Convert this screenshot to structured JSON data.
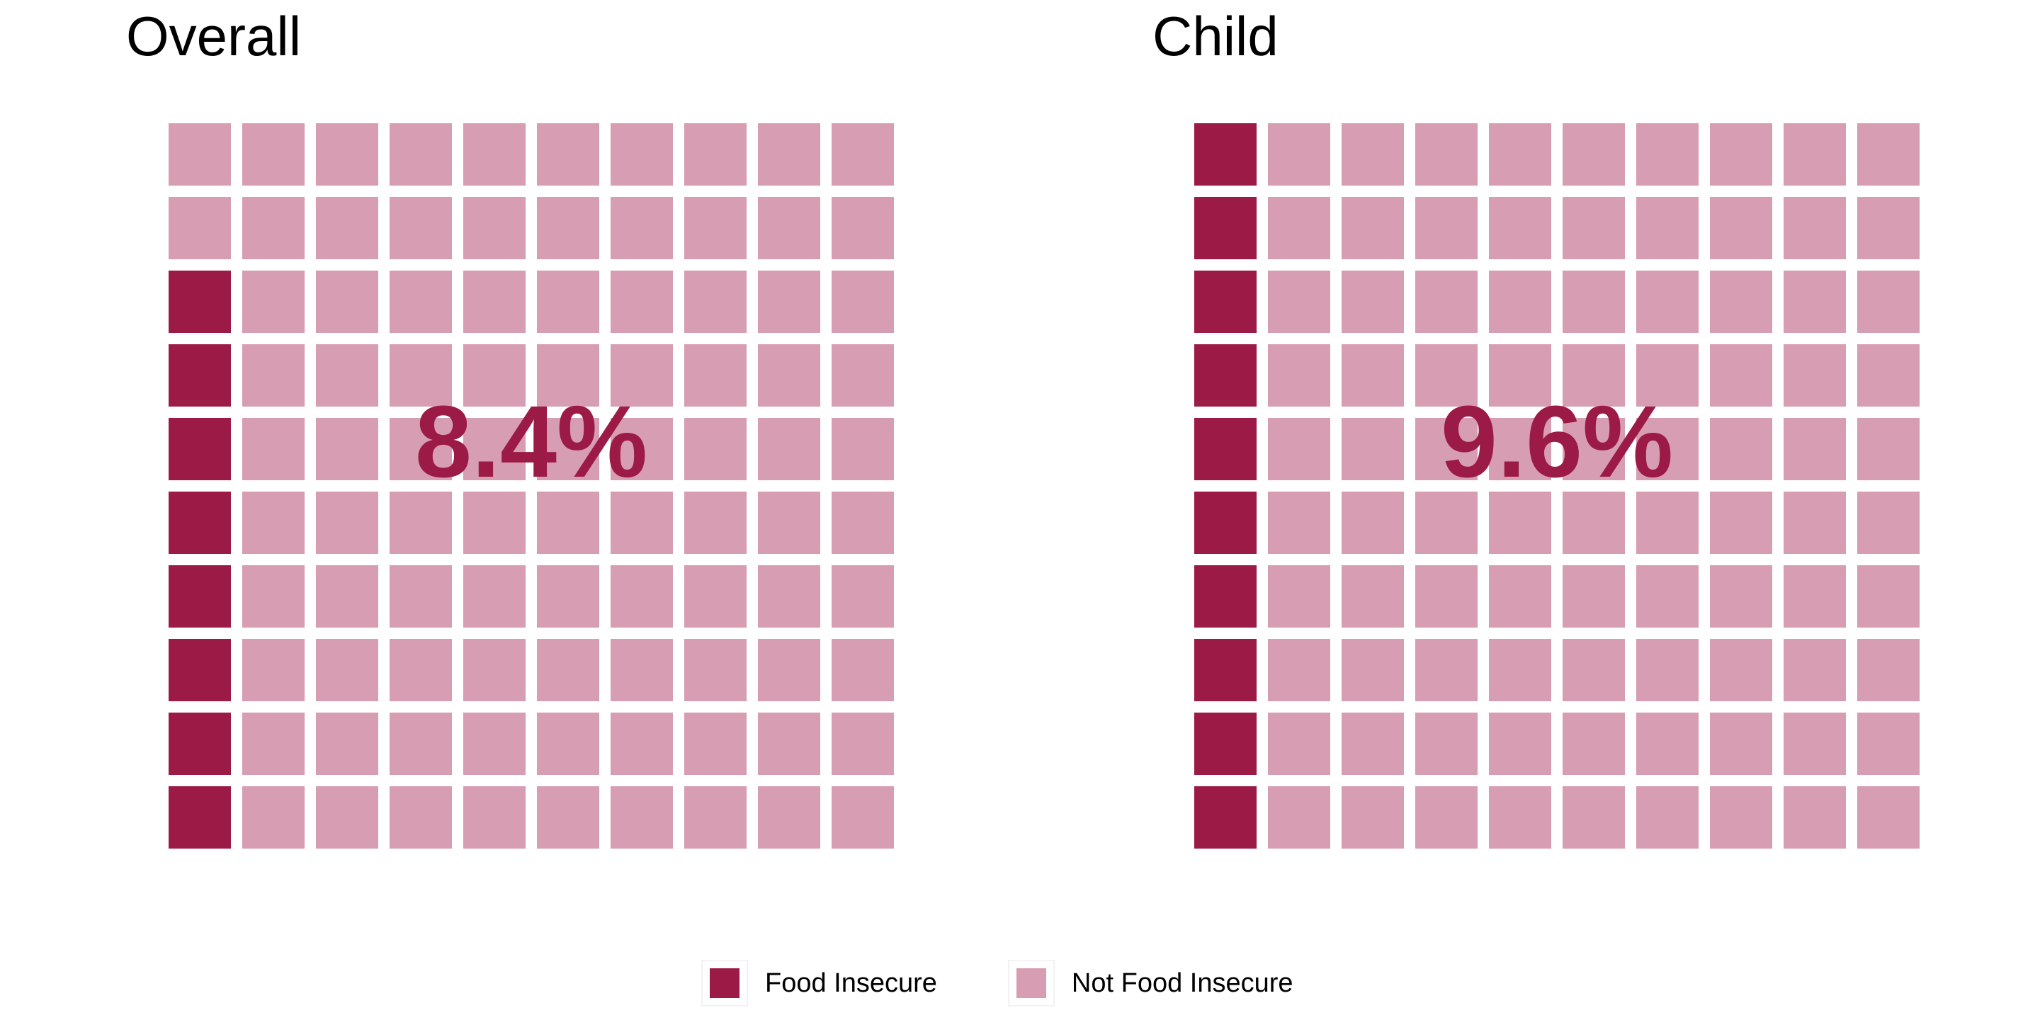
{
  "colors": {
    "food_insecure": "#9c1a46",
    "not_food_insecure": "#d79db2",
    "label": "#9c1a46"
  },
  "chart_data": [
    {
      "type": "waffle",
      "title": "Overall",
      "grid": {
        "rows": 10,
        "cols": 10
      },
      "fill_order": "bottom-up, left column first",
      "categories": [
        "Food Insecure",
        "Not Food Insecure"
      ],
      "values": [
        8,
        92
      ],
      "label": "8.4%"
    },
    {
      "type": "waffle",
      "title": "Child",
      "grid": {
        "rows": 10,
        "cols": 10
      },
      "fill_order": "bottom-up, left column first",
      "categories": [
        "Food Insecure",
        "Not Food Insecure"
      ],
      "values": [
        10,
        90
      ],
      "label": "9.6%"
    }
  ],
  "legend": {
    "placement": "bottom",
    "items": [
      "Food Insecure",
      "Not Food Insecure"
    ]
  }
}
